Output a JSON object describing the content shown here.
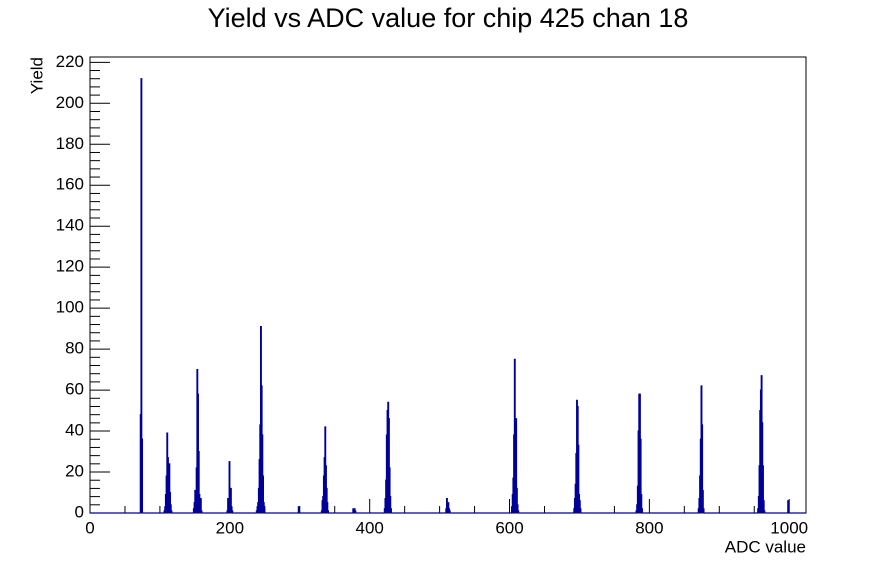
{
  "chart_data": {
    "type": "histogram",
    "title": "Yield vs ADC value for chip 425 chan 18",
    "x_label": "ADC value",
    "y_label": "Yield",
    "color": "#000099",
    "xlim": [
      0,
      1024
    ],
    "ylim": [
      0,
      222.6
    ],
    "xticks": [
      0,
      200,
      400,
      600,
      800,
      1000
    ],
    "yticks": [
      0,
      20,
      40,
      60,
      80,
      100,
      120,
      140,
      160,
      180,
      200,
      220
    ],
    "bins": [
      0,
      72,
      73,
      74,
      75,
      106,
      107,
      108,
      109,
      110,
      111,
      112,
      113,
      114,
      115,
      116,
      117,
      148,
      149,
      150,
      151,
      152,
      153,
      154,
      155,
      156,
      157,
      158,
      159,
      160,
      196,
      197,
      198,
      199,
      200,
      201,
      202,
      203,
      204,
      238,
      239,
      240,
      241,
      242,
      243,
      244,
      245,
      246,
      247,
      248,
      249,
      250,
      298,
      299,
      331,
      332,
      333,
      334,
      335,
      336,
      337,
      338,
      339,
      340,
      341,
      376,
      377,
      378,
      379,
      380,
      421,
      422,
      423,
      424,
      425,
      426,
      427,
      428,
      429,
      430,
      431,
      509,
      510,
      511,
      512,
      513,
      514,
      515,
      603,
      604,
      605,
      606,
      607,
      608,
      609,
      610,
      611,
      612,
      613,
      692,
      693,
      694,
      695,
      696,
      697,
      698,
      699,
      700,
      701,
      702,
      781,
      782,
      783,
      784,
      785,
      786,
      787,
      788,
      789,
      790,
      870,
      871,
      872,
      873,
      874,
      875,
      876,
      877,
      878,
      955,
      956,
      957,
      958,
      959,
      960,
      961,
      962,
      963,
      964,
      965,
      998,
      999,
      1024
    ],
    "values": [
      0,
      48,
      212,
      36,
      0,
      1,
      3,
      9,
      18,
      39,
      27,
      16,
      24,
      10,
      4,
      1,
      0,
      2,
      5,
      11,
      8,
      22,
      70,
      58,
      30,
      9,
      3,
      7,
      1,
      0,
      1,
      7,
      4,
      25,
      8,
      12,
      3,
      1,
      0,
      1,
      3,
      5,
      12,
      26,
      43,
      91,
      62,
      38,
      18,
      5,
      2,
      0,
      3,
      0,
      1,
      6,
      8,
      18,
      27,
      42,
      23,
      12,
      5,
      1,
      0,
      2,
      1,
      2,
      1,
      0,
      2,
      7,
      16,
      38,
      50,
      54,
      46,
      22,
      8,
      2,
      0,
      2,
      7,
      3,
      5,
      2,
      1,
      0,
      3,
      9,
      17,
      38,
      75,
      44,
      46,
      12,
      4,
      1,
      0,
      2,
      7,
      14,
      29,
      55,
      52,
      33,
      9,
      6,
      2,
      0,
      1,
      4,
      13,
      40,
      58,
      58,
      36,
      9,
      2,
      0,
      2,
      7,
      18,
      36,
      62,
      43,
      11,
      2,
      0,
      2,
      8,
      23,
      50,
      60,
      67,
      44,
      23,
      6,
      1,
      0,
      6,
      0
    ]
  }
}
